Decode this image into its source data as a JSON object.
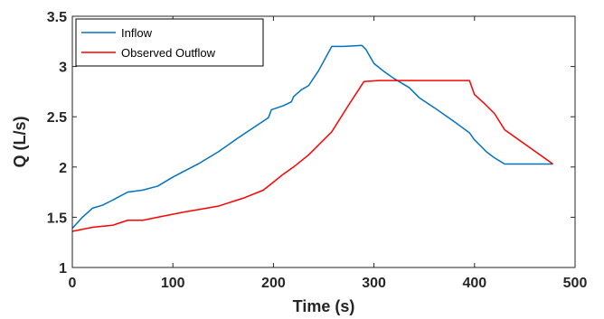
{
  "chart_data": {
    "type": "line",
    "title": "",
    "xlabel": "Time (s)",
    "ylabel": "Q (L/s)",
    "xlim": [
      0,
      500
    ],
    "ylim": [
      1,
      3.5
    ],
    "xticks": [
      0,
      100,
      200,
      300,
      400,
      500
    ],
    "yticks": [
      1,
      1.5,
      2,
      2.5,
      3,
      3.5
    ],
    "xtick_labels": [
      "0",
      "100",
      "200",
      "300",
      "400",
      "500"
    ],
    "ytick_labels": [
      "1",
      "1.5",
      "2",
      "2.5",
      "3",
      "3.5"
    ],
    "grid": false,
    "legend_position": "top-left",
    "series": [
      {
        "name": "Inflow",
        "color": "#0072BD",
        "x": [
          0,
          10,
          20,
          30,
          40,
          55,
          70,
          85,
          100,
          125,
          145,
          165,
          180,
          195,
          198,
          210,
          218,
          220,
          228,
          235,
          245,
          258,
          270,
          288,
          292,
          296,
          300,
          310,
          320,
          335,
          345,
          360,
          380,
          395,
          400,
          412,
          420,
          430,
          450,
          478
        ],
        "y": [
          1.39,
          1.5,
          1.59,
          1.62,
          1.67,
          1.75,
          1.77,
          1.81,
          1.9,
          2.03,
          2.15,
          2.29,
          2.39,
          2.49,
          2.57,
          2.61,
          2.65,
          2.7,
          2.77,
          2.81,
          2.96,
          3.2,
          3.2,
          3.21,
          3.17,
          3.1,
          3.03,
          2.95,
          2.88,
          2.79,
          2.69,
          2.59,
          2.45,
          2.34,
          2.27,
          2.15,
          2.09,
          2.03,
          2.03,
          2.03
        ]
      },
      {
        "name": "Observed Outflow",
        "color": "#FF0000",
        "x": [
          0,
          20,
          40,
          55,
          70,
          90,
          110,
          145,
          170,
          190,
          200,
          210,
          220,
          235,
          258,
          275,
          290,
          305,
          340,
          370,
          395,
          400,
          410,
          420,
          430,
          478
        ],
        "y": [
          1.36,
          1.4,
          1.42,
          1.47,
          1.47,
          1.51,
          1.55,
          1.61,
          1.69,
          1.77,
          1.85,
          1.93,
          2.0,
          2.12,
          2.35,
          2.62,
          2.85,
          2.86,
          2.86,
          2.86,
          2.86,
          2.72,
          2.63,
          2.53,
          2.37,
          2.03
        ]
      }
    ]
  }
}
